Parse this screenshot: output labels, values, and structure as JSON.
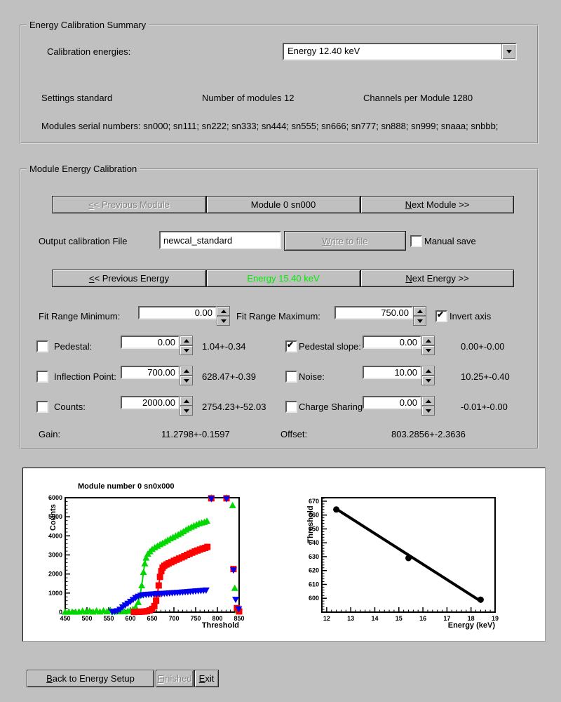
{
  "colors": {
    "window_bg": "#c0c0c0",
    "energy_text": "#00ee00",
    "series_green": "#00d800",
    "series_red": "#ff0000",
    "series_blue": "#0000ee"
  },
  "icons": {
    "combo_arrow": "triangle-down",
    "spin_up": "triangle-up",
    "spin_down": "triangle-down"
  },
  "summary": {
    "title": "Energy Calibration Summary",
    "calibration_energies_label": "Calibration energies:",
    "energy_select_value": "Energy 12.40 keV",
    "settings": "Settings standard",
    "num_modules": "Number of modules 12",
    "channels_per_module": "Channels per Module 1280",
    "serials": "Modules serial numbers: sn000; sn111; sn222; sn333; sn444; sn555; sn666; sn777; sn888; sn999; snaaa; snbbb;"
  },
  "module_cal": {
    "title": "Module Energy Calibration",
    "prev_module": "<< Previous Module",
    "module_label": "Module 0 sn000",
    "next_module": "Next Module >>",
    "output_file_label": "Output calibration File",
    "output_file_value": "newcal_standard",
    "write_to_file": "Write to file",
    "manual_save": "Manual save",
    "prev_energy": "<< Previous Energy",
    "energy_label": "Energy 15.40 keV",
    "energy_color": "#00ee00",
    "next_energy": "Next Energy >>",
    "fit_min_label": "Fit Range Minimum:",
    "fit_min_value": "0.00",
    "fit_max_label": "Fit Range Maximum:",
    "fit_max_value": "750.00",
    "invert_axis_label": "Invert axis",
    "invert_axis_checked": true,
    "manual_save_checked": false,
    "rows": [
      {
        "label": "Pedestal:",
        "checked": false,
        "value": "0.00",
        "result": "1.04+-0.34"
      },
      {
        "label": "Pedestal slope:",
        "checked": true,
        "value": "0.00",
        "result": "0.00+-0.00"
      },
      {
        "label": "Inflection Point:",
        "checked": false,
        "value": "700.00",
        "result": "628.47+-0.39"
      },
      {
        "label": "Noise:",
        "checked": false,
        "value": "10.00",
        "result": "10.25+-0.40"
      },
      {
        "label": "Counts:",
        "checked": false,
        "value": "2000.00",
        "result": "2754.23+-52.03"
      },
      {
        "label": "Charge Sharing",
        "checked": false,
        "value": "0.00",
        "result": "-0.01+-0.00"
      }
    ],
    "gain_label": "Gain:",
    "gain_value": "11.2798+-0.1597",
    "offset_label": "Offset:",
    "offset_value": "803.2856+-2.3636"
  },
  "footer": {
    "back": "Back to Energy Setup",
    "finished": "Finished",
    "exit": "Exit"
  },
  "chart_data": [
    {
      "type": "scatter",
      "title": "Module number 0 sn0x000",
      "xlabel": "Threshold",
      "ylabel": "Counts",
      "xlim": [
        450,
        850
      ],
      "ylim": [
        0,
        6000
      ],
      "xticks": [
        450,
        500,
        550,
        600,
        650,
        700,
        750,
        800,
        850
      ],
      "yticks": [
        0,
        1000,
        2000,
        3000,
        4000,
        5000,
        6000
      ],
      "x_minor_div": 5,
      "y_minor_div": 5,
      "grid": false,
      "legend": false,
      "series": [
        {
          "name": "scan-green-triangle-up",
          "color": "#00d800",
          "marker": "triangle-up",
          "line": true,
          "lw": 2,
          "points": [
            [
              450,
              15
            ],
            [
              458,
              12
            ],
            [
              466,
              18
            ],
            [
              474,
              14
            ],
            [
              482,
              20
            ],
            [
              490,
              70
            ],
            [
              498,
              25
            ],
            [
              506,
              75
            ],
            [
              514,
              20
            ],
            [
              522,
              80
            ],
            [
              530,
              25
            ],
            [
              538,
              85
            ],
            [
              546,
              30
            ],
            [
              554,
              95
            ],
            [
              562,
              25
            ],
            [
              570,
              30
            ],
            [
              578,
              35
            ],
            [
              586,
              30
            ],
            [
              594,
              55
            ],
            [
              600,
              90
            ],
            [
              606,
              150
            ],
            [
              612,
              260
            ],
            [
              618,
              520
            ],
            [
              622,
              900
            ],
            [
              626,
              1400
            ],
            [
              630,
              2100
            ],
            [
              633,
              2550
            ],
            [
              636,
              2850
            ],
            [
              640,
              3050
            ],
            [
              645,
              3180
            ],
            [
              650,
              3300
            ],
            [
              656,
              3390
            ],
            [
              662,
              3470
            ],
            [
              668,
              3550
            ],
            [
              674,
              3620
            ],
            [
              680,
              3700
            ],
            [
              686,
              3780
            ],
            [
              692,
              3860
            ],
            [
              698,
              3930
            ],
            [
              704,
              4000
            ],
            [
              710,
              4070
            ],
            [
              716,
              4150
            ],
            [
              722,
              4230
            ],
            [
              728,
              4320
            ],
            [
              734,
              4400
            ],
            [
              740,
              4470
            ],
            [
              746,
              4530
            ],
            [
              752,
              4590
            ],
            [
              758,
              4650
            ],
            [
              764,
              4690
            ],
            [
              770,
              4720
            ],
            [
              776,
              4780
            ]
          ]
        },
        {
          "name": "scan-green-overflow",
          "color": "#00d800",
          "marker": "triangle-up",
          "line": false,
          "lw": 0,
          "points": [
            [
              786,
              6000
            ],
            [
              821,
              6000
            ],
            [
              835,
              5600
            ],
            [
              840,
              1260
            ],
            [
              847,
              90
            ]
          ]
        },
        {
          "name": "scan-red-square",
          "color": "#ff0000",
          "marker": "square",
          "line": true,
          "lw": 2,
          "points": [
            [
              608,
              10
            ],
            [
              614,
              15
            ],
            [
              620,
              20
            ],
            [
              626,
              25
            ],
            [
              632,
              35
            ],
            [
              638,
              50
            ],
            [
              644,
              90
            ],
            [
              650,
              170
            ],
            [
              655,
              320
            ],
            [
              659,
              600
            ],
            [
              662,
              950
            ],
            [
              665,
              1400
            ],
            [
              668,
              1850
            ],
            [
              671,
              2150
            ],
            [
              674,
              2330
            ],
            [
              678,
              2430
            ],
            [
              683,
              2500
            ],
            [
              688,
              2560
            ],
            [
              694,
              2620
            ],
            [
              700,
              2690
            ],
            [
              706,
              2750
            ],
            [
              712,
              2810
            ],
            [
              718,
              2870
            ],
            [
              724,
              2930
            ],
            [
              730,
              3000
            ],
            [
              736,
              3060
            ],
            [
              742,
              3120
            ],
            [
              748,
              3180
            ],
            [
              754,
              3230
            ],
            [
              760,
              3280
            ],
            [
              766,
              3330
            ],
            [
              772,
              3370
            ],
            [
              777,
              3420
            ]
          ]
        },
        {
          "name": "scan-red-overflow",
          "color": "#ff0000",
          "marker": "square",
          "line": false,
          "lw": 0,
          "points": [
            [
              786,
              5970
            ],
            [
              821,
              5970
            ],
            [
              837,
              2260
            ],
            [
              845,
              210
            ],
            [
              850,
              40
            ]
          ]
        },
        {
          "name": "scan-blue-triangle-down",
          "color": "#0000ee",
          "marker": "triangle-down",
          "line": true,
          "lw": 2,
          "points": [
            [
              558,
              15
            ],
            [
              564,
              30
            ],
            [
              570,
              60
            ],
            [
              576,
              140
            ],
            [
              582,
              260
            ],
            [
              588,
              360
            ],
            [
              594,
              450
            ],
            [
              600,
              550
            ],
            [
              606,
              650
            ],
            [
              612,
              750
            ],
            [
              618,
              820
            ],
            [
              624,
              870
            ],
            [
              630,
              900
            ],
            [
              636,
              915
            ],
            [
              642,
              925
            ],
            [
              648,
              935
            ],
            [
              654,
              945
            ],
            [
              660,
              952
            ],
            [
              666,
              960
            ],
            [
              672,
              968
            ],
            [
              678,
              976
            ],
            [
              684,
              985
            ],
            [
              690,
              993
            ],
            [
              696,
              1002
            ],
            [
              702,
              1012
            ],
            [
              708,
              1022
            ],
            [
              714,
              1032
            ],
            [
              720,
              1043
            ],
            [
              726,
              1054
            ],
            [
              732,
              1065
            ],
            [
              738,
              1076
            ],
            [
              744,
              1087
            ],
            [
              750,
              1098
            ],
            [
              756,
              1109
            ],
            [
              762,
              1120
            ],
            [
              768,
              1131
            ],
            [
              774,
              1145
            ]
          ]
        },
        {
          "name": "scan-blue-overflow",
          "color": "#0000ee",
          "marker": "triangle-down",
          "line": false,
          "lw": 0,
          "points": [
            [
              786,
              5940
            ],
            [
              821,
              5940
            ],
            [
              837,
              2200
            ],
            [
              842,
              660
            ],
            [
              849,
              160
            ]
          ]
        }
      ]
    },
    {
      "type": "line",
      "title": "",
      "xlabel": "Energy (keV)",
      "ylabel": "Threshold",
      "xlim": [
        11.8,
        19
      ],
      "ylim": [
        590,
        672.5
      ],
      "xticks": [
        12,
        13,
        14,
        15,
        16,
        17,
        18,
        19
      ],
      "yticks": [
        600,
        610,
        620,
        630,
        640,
        650,
        660,
        670
      ],
      "x_minor_div": 5,
      "y_minor_div": 5,
      "grid": false,
      "legend": false,
      "series": [
        {
          "name": "calibration-fit-line",
          "color": "#000000",
          "marker": null,
          "line": true,
          "lw": 4,
          "points": [
            [
              12.38,
              664.6
            ],
            [
              18.45,
              597.4
            ]
          ]
        },
        {
          "name": "calibration-points",
          "color": "#000000",
          "marker": "circle",
          "line": false,
          "lw": 0,
          "points": [
            [
              12.4,
              664
            ],
            [
              15.4,
              629
            ],
            [
              18.4,
              599
            ]
          ]
        }
      ]
    }
  ]
}
